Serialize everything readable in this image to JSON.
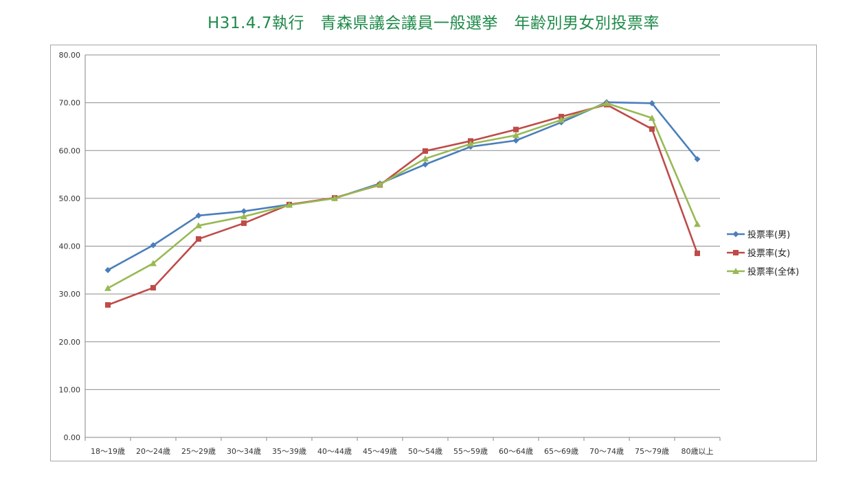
{
  "page": {
    "title": "H31.4.7執行　青森県議会議員一般選挙　年齢別男女別投票率"
  },
  "chart_data": {
    "type": "line",
    "title": "H31.4.7執行　青森県議会議員一般選挙　年齢別男女別投票率",
    "xlabel": "",
    "ylabel": "",
    "ylim": [
      0,
      80
    ],
    "ytick_labels": [
      "0.00",
      "10.00",
      "20.00",
      "30.00",
      "40.00",
      "50.00",
      "60.00",
      "70.00",
      "80.00"
    ],
    "categories": [
      "18～19歳",
      "20～24歳",
      "25～29歳",
      "30～34歳",
      "35～39歳",
      "40～44歳",
      "45～49歳",
      "50～54歳",
      "55～59歳",
      "60～64歳",
      "65～69歳",
      "70～74歳",
      "75～79歳",
      "80歳以上"
    ],
    "grid": true,
    "legend_position": "right",
    "series": [
      {
        "name": "投票率(男)",
        "color": "#4a7ebb",
        "marker": "diamond",
        "values": [
          35.0,
          40.2,
          46.4,
          47.3,
          48.7,
          50.0,
          53.1,
          57.1,
          60.8,
          62.1,
          65.9,
          70.1,
          69.9,
          58.2
        ]
      },
      {
        "name": "投票率(女)",
        "color": "#be4b48",
        "marker": "square",
        "values": [
          27.7,
          31.3,
          41.5,
          44.8,
          48.7,
          50.1,
          52.8,
          59.9,
          62.0,
          64.4,
          67.1,
          69.6,
          64.5,
          38.5
        ]
      },
      {
        "name": "投票率(全体)",
        "color": "#98b954",
        "marker": "triangle",
        "values": [
          31.2,
          36.4,
          44.3,
          46.2,
          48.6,
          50.0,
          52.9,
          58.3,
          61.4,
          63.2,
          66.4,
          69.9,
          66.8,
          44.6
        ]
      }
    ]
  }
}
